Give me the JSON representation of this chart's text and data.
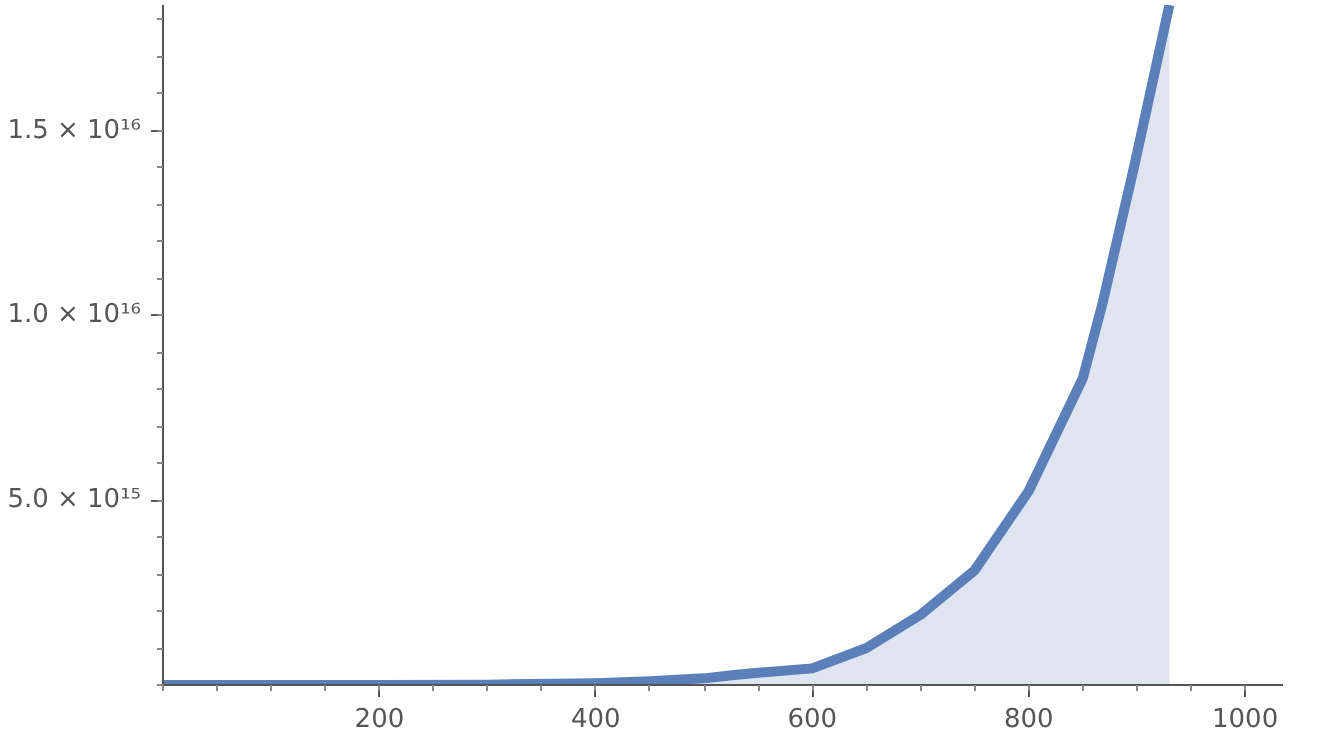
{
  "chart_data": {
    "type": "area",
    "x": [
      0,
      100,
      200,
      300,
      400,
      450,
      500,
      528,
      550,
      600,
      650,
      700,
      750,
      800,
      850,
      868,
      898,
      930
    ],
    "series": [
      {
        "color": "#5b7fb8",
        "values": [
          0,
          0,
          0,
          10000000000000.0,
          50000000000000.0,
          100000000000000.0,
          180000000000000.0,
          270000000000000.0,
          330000000000000.0,
          450000000000000.0,
          1000000000000000.0,
          1900000000000000.0,
          3100000000000000.0,
          5250000000000000.0,
          8300000000000000.0,
          1.03e+16,
          1.41e+16,
          1.84e+16
        ]
      }
    ],
    "xlim": [
      0,
      1035
    ],
    "ylim": [
      0,
      1.84e+16
    ],
    "xticks": [
      200,
      400,
      600,
      800,
      1000
    ],
    "yticks": [
      {
        "value": 5000000000000000.0,
        "label": "5.0 × 10¹⁵"
      },
      {
        "value": 1e+16,
        "label": "1.0 × 10¹⁶"
      },
      {
        "value": 1.5e+16,
        "label": "1.5 × 10¹⁶"
      }
    ],
    "grid": false
  }
}
